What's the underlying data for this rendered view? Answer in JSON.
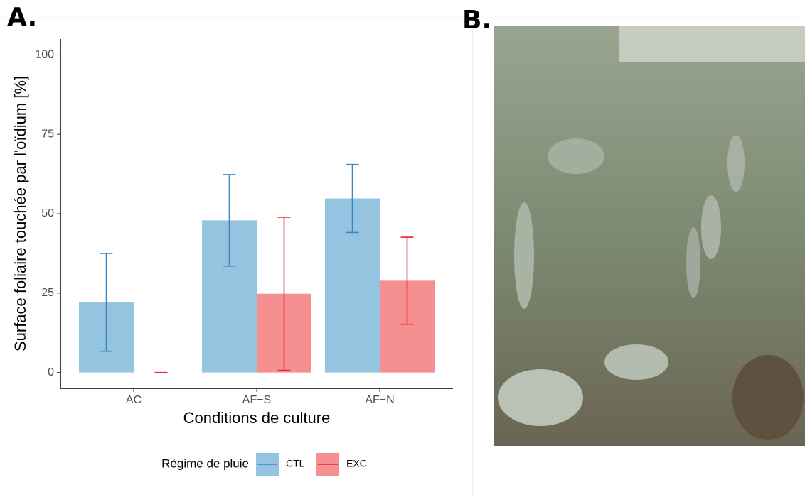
{
  "panels": {
    "a_label": "A.",
    "b_label": "B."
  },
  "chart_data": {
    "type": "bar",
    "ylabel": "Surface foliaire touchée par l'oïdium [%]",
    "xlabel": "Conditions de culture",
    "legend_title": "Régime de pluie",
    "legend_position": "bottom",
    "categories": [
      "AC",
      "AF−S",
      "AF−N"
    ],
    "series": [
      {
        "name": "CTL",
        "color": "#94c4df",
        "error_color": "#3a86c0",
        "values": [
          22.1,
          47.9,
          54.8
        ],
        "errors": [
          15.4,
          14.4,
          10.7
        ]
      },
      {
        "name": "EXC",
        "color": "#f68f8f",
        "error_color": "#e8262a",
        "values": [
          0,
          24.8,
          28.9
        ],
        "errors": [
          0,
          24.1,
          13.7
        ]
      }
    ],
    "ylim": [
      -5,
      105
    ],
    "yticks": [
      0,
      25,
      50,
      75,
      100
    ],
    "grid": false
  }
}
